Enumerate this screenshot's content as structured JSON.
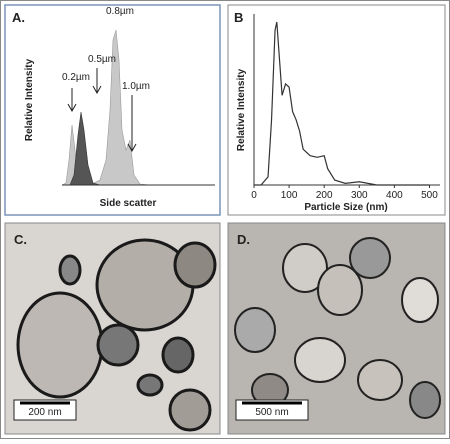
{
  "panel_a": {
    "label": "A.",
    "y_label": "Relative Intensity",
    "x_label": "Side scatter",
    "annotations": [
      "0.2µm",
      "0.5µm",
      "0.8µm",
      "1.0µm"
    ]
  },
  "chart_data": {
    "type": "line",
    "label": "B",
    "y_label": "Relative Intensity",
    "x_label": "Particle Size (nm)",
    "x": [
      0,
      20,
      40,
      50,
      60,
      65,
      70,
      80,
      90,
      100,
      110,
      120,
      130,
      140,
      160,
      180,
      200,
      210,
      230,
      260,
      300,
      350,
      400,
      500
    ],
    "values": [
      0,
      0,
      5,
      40,
      95,
      100,
      85,
      55,
      62,
      60,
      45,
      40,
      33,
      22,
      18,
      17,
      18,
      10,
      3,
      1,
      2,
      0,
      0,
      0
    ],
    "xlim": [
      0,
      530
    ],
    "ylim": [
      0,
      100
    ],
    "xticks": [
      0,
      100,
      200,
      300,
      400,
      500
    ],
    "color": "#333333"
  },
  "panel_c": {
    "label": "C.",
    "scale_bar": "200 nm"
  },
  "panel_d": {
    "label": "D.",
    "scale_bar": "500 nm"
  }
}
